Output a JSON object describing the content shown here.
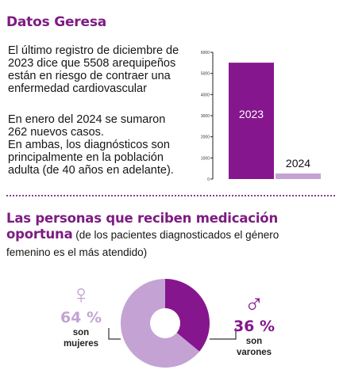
{
  "section1": {
    "title": "Datos Geresa",
    "paragraph1": "El último registro de diciembre de 2023 dice que 5508 arequipeños están en riesgo de contraer una enfermedad cardiovascular",
    "paragraph2_lines": [
      "En enero del 2024 se sumaron",
      "262 nuevos casos.",
      "En ambas, los diagnósticos son",
      "principalmente en la población",
      "adulta (de  40 años en adelante)."
    ]
  },
  "section2": {
    "title_line1": "Las personas que reciben  medicación",
    "title_line2": "oportuna",
    "note_inline": " (de los pacientes diagnosticados el género",
    "note_line2": "femenino es el más atendido)",
    "female": {
      "symbol": "♀",
      "percent": "64 %",
      "label_line1": "son",
      "label_line2": "mujeres"
    },
    "male": {
      "symbol": "♂",
      "percent": "36 %",
      "label_line1": "son",
      "label_line2": "varones"
    }
  },
  "colors": {
    "purple_dark": "#86168e",
    "purple_light": "#c4a3d4",
    "title_purple": "#7d1c82"
  },
  "chart_data": [
    {
      "type": "bar",
      "categories": [
        "2023",
        "2024"
      ],
      "values": [
        5508,
        262
      ],
      "ylim": [
        0,
        6000
      ],
      "yticks": [
        0,
        1000,
        2000,
        3000,
        4000,
        5000,
        6000
      ],
      "ytick_labels": [
        "0",
        "1000",
        "2000",
        "3000",
        "4000",
        "5000",
        "6000"
      ],
      "bar_colors": [
        "#86168e",
        "#c4a3d4"
      ]
    },
    {
      "type": "pie",
      "labels": [
        "mujeres",
        "varones"
      ],
      "values": [
        64,
        36
      ],
      "colors": [
        "#c4a3d4",
        "#86168e"
      ],
      "donut": true
    }
  ]
}
